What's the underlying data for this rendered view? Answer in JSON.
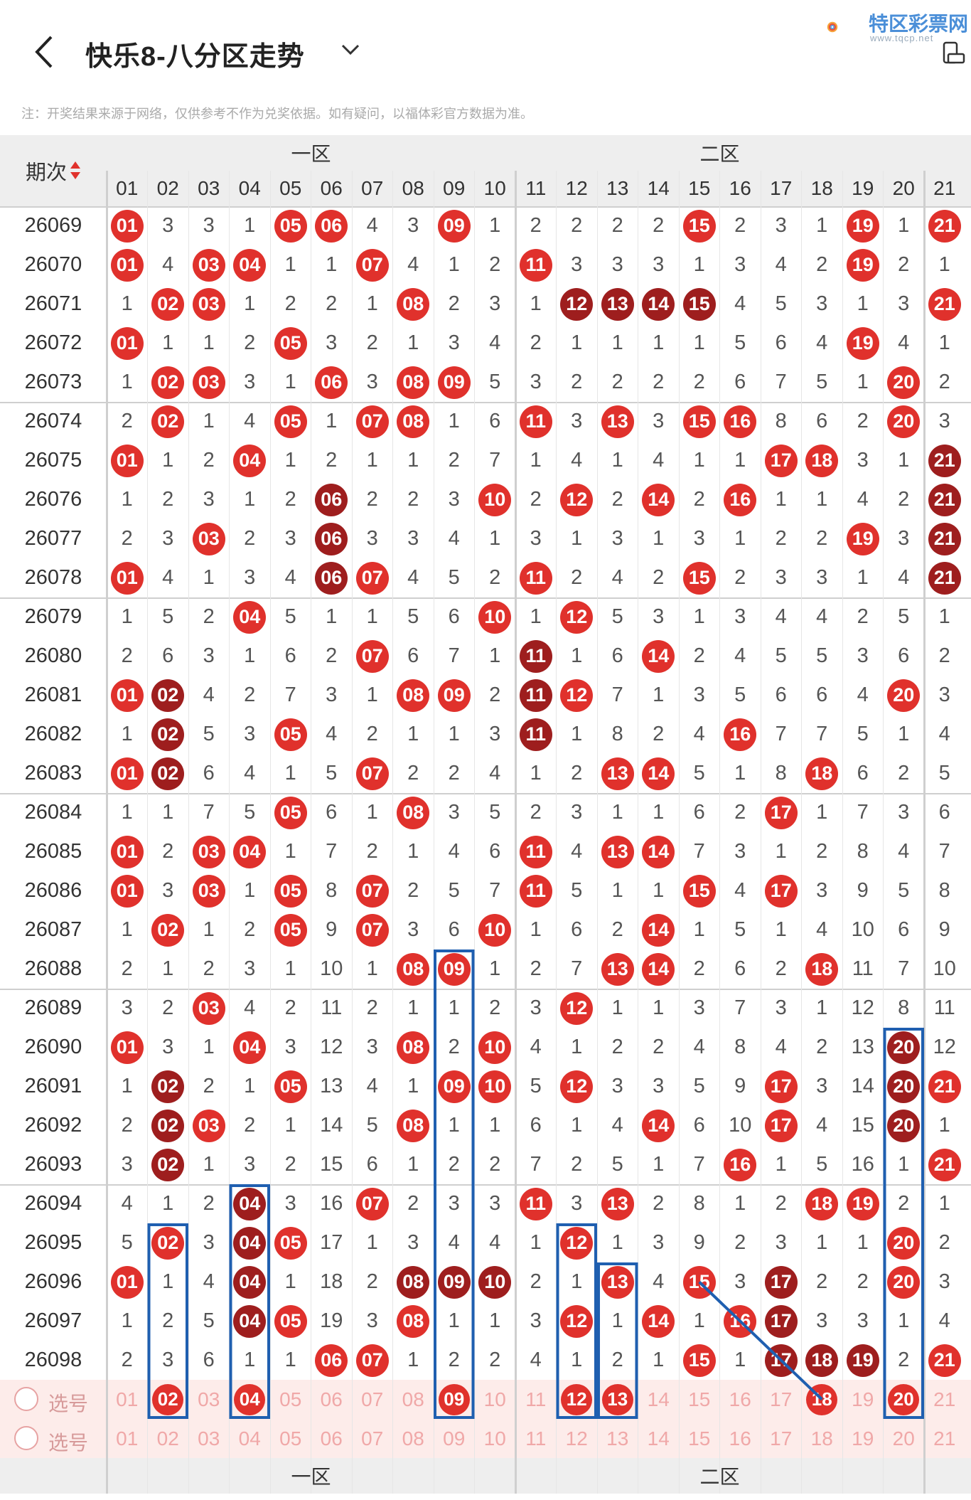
{
  "header": {
    "title": "快乐8-八分区走势",
    "logo_text": "特区彩票网",
    "logo_sub": "www.tqcp.net",
    "note": "注：开奖结果来源于网络，仅供参考不作为兑奖依据。如有疑问，以福体彩官方数据为准。"
  },
  "table": {
    "period_header": "期次",
    "zone1_label": "一区",
    "zone2_label": "二区",
    "columns": [
      "01",
      "02",
      "03",
      "04",
      "05",
      "06",
      "07",
      "08",
      "09",
      "10",
      "11",
      "12",
      "13",
      "14",
      "15",
      "16",
      "17",
      "18",
      "19",
      "20",
      "21"
    ],
    "rows": [
      {
        "period": "26069",
        "cells": [
          "B01",
          "3",
          "3",
          "1",
          "B05",
          "B06",
          "4",
          "3",
          "B09",
          "1",
          "2",
          "2",
          "2",
          "2",
          "B15",
          "2",
          "3",
          "1",
          "B19",
          "1",
          "B21"
        ]
      },
      {
        "period": "26070",
        "cells": [
          "B01",
          "4",
          "B03",
          "B04",
          "1",
          "1",
          "B07",
          "4",
          "1",
          "2",
          "B11",
          "3",
          "3",
          "3",
          "1",
          "3",
          "4",
          "2",
          "B19",
          "2",
          "1"
        ]
      },
      {
        "period": "26071",
        "cells": [
          "1",
          "B02",
          "B03",
          "1",
          "2",
          "2",
          "1",
          "B08",
          "2",
          "3",
          "1",
          "D12",
          "D13",
          "D14",
          "D15",
          "4",
          "5",
          "3",
          "1",
          "3",
          "B21"
        ]
      },
      {
        "period": "26072",
        "cells": [
          "B01",
          "1",
          "1",
          "2",
          "B05",
          "3",
          "2",
          "1",
          "3",
          "4",
          "2",
          "1",
          "1",
          "1",
          "1",
          "5",
          "6",
          "4",
          "B19",
          "4",
          "1"
        ]
      },
      {
        "period": "26073",
        "cells": [
          "1",
          "B02",
          "B03",
          "3",
          "1",
          "B06",
          "3",
          "B08",
          "B09",
          "5",
          "3",
          "2",
          "2",
          "2",
          "2",
          "6",
          "7",
          "5",
          "1",
          "B20",
          "2"
        ]
      },
      {
        "period": "26074",
        "cells": [
          "2",
          "B02",
          "1",
          "4",
          "B05",
          "1",
          "B07",
          "B08",
          "1",
          "6",
          "B11",
          "3",
          "B13",
          "3",
          "B15",
          "B16",
          "8",
          "6",
          "2",
          "B20",
          "3"
        ]
      },
      {
        "period": "26075",
        "cells": [
          "B01",
          "1",
          "2",
          "B04",
          "1",
          "2",
          "1",
          "1",
          "2",
          "7",
          "1",
          "4",
          "1",
          "4",
          "1",
          "1",
          "B17",
          "B18",
          "3",
          "1",
          "D21"
        ]
      },
      {
        "period": "26076",
        "cells": [
          "1",
          "2",
          "3",
          "1",
          "2",
          "D06",
          "2",
          "2",
          "3",
          "B10",
          "2",
          "B12",
          "2",
          "B14",
          "2",
          "B16",
          "1",
          "1",
          "4",
          "2",
          "D21"
        ]
      },
      {
        "period": "26077",
        "cells": [
          "2",
          "3",
          "B03",
          "2",
          "3",
          "D06",
          "3",
          "3",
          "4",
          "1",
          "3",
          "1",
          "3",
          "1",
          "3",
          "1",
          "2",
          "2",
          "B19",
          "3",
          "D21"
        ]
      },
      {
        "period": "26078",
        "cells": [
          "B01",
          "4",
          "1",
          "3",
          "4",
          "D06",
          "B07",
          "4",
          "5",
          "2",
          "B11",
          "2",
          "4",
          "2",
          "B15",
          "2",
          "3",
          "3",
          "1",
          "4",
          "D21"
        ]
      },
      {
        "period": "26079",
        "cells": [
          "1",
          "5",
          "2",
          "B04",
          "5",
          "1",
          "1",
          "5",
          "6",
          "B10",
          "1",
          "B12",
          "5",
          "3",
          "1",
          "3",
          "4",
          "4",
          "2",
          "5",
          "1"
        ]
      },
      {
        "period": "26080",
        "cells": [
          "2",
          "6",
          "3",
          "1",
          "6",
          "2",
          "B07",
          "6",
          "7",
          "1",
          "D11",
          "1",
          "6",
          "B14",
          "2",
          "4",
          "5",
          "5",
          "3",
          "6",
          "2"
        ]
      },
      {
        "period": "26081",
        "cells": [
          "B01",
          "D02",
          "4",
          "2",
          "7",
          "3",
          "1",
          "B08",
          "B09",
          "2",
          "D11",
          "B12",
          "7",
          "1",
          "3",
          "5",
          "6",
          "6",
          "4",
          "B20",
          "3"
        ]
      },
      {
        "period": "26082",
        "cells": [
          "1",
          "D02",
          "5",
          "3",
          "B05",
          "4",
          "2",
          "1",
          "1",
          "3",
          "D11",
          "1",
          "8",
          "2",
          "4",
          "B16",
          "7",
          "7",
          "5",
          "1",
          "4"
        ]
      },
      {
        "period": "26083",
        "cells": [
          "B01",
          "D02",
          "6",
          "4",
          "1",
          "5",
          "B07",
          "2",
          "2",
          "4",
          "1",
          "2",
          "B13",
          "B14",
          "5",
          "1",
          "8",
          "B18",
          "6",
          "2",
          "5"
        ]
      },
      {
        "period": "26084",
        "cells": [
          "1",
          "1",
          "7",
          "5",
          "B05",
          "6",
          "1",
          "B08",
          "3",
          "5",
          "2",
          "3",
          "1",
          "1",
          "6",
          "2",
          "B17",
          "1",
          "7",
          "3",
          "6"
        ]
      },
      {
        "period": "26085",
        "cells": [
          "B01",
          "2",
          "B03",
          "B04",
          "1",
          "7",
          "2",
          "1",
          "4",
          "6",
          "B11",
          "4",
          "B13",
          "B14",
          "7",
          "3",
          "1",
          "2",
          "8",
          "4",
          "7"
        ]
      },
      {
        "period": "26086",
        "cells": [
          "B01",
          "3",
          "B03",
          "1",
          "B05",
          "8",
          "B07",
          "2",
          "5",
          "7",
          "B11",
          "5",
          "1",
          "1",
          "B15",
          "4",
          "B17",
          "3",
          "9",
          "5",
          "8"
        ]
      },
      {
        "period": "26087",
        "cells": [
          "1",
          "B02",
          "1",
          "2",
          "B05",
          "9",
          "B07",
          "3",
          "6",
          "B10",
          "1",
          "6",
          "2",
          "B14",
          "1",
          "5",
          "1",
          "4",
          "10",
          "6",
          "9"
        ]
      },
      {
        "period": "26088",
        "cells": [
          "2",
          "1",
          "2",
          "3",
          "1",
          "10",
          "1",
          "B08",
          "B09",
          "1",
          "2",
          "7",
          "B13",
          "B14",
          "2",
          "6",
          "2",
          "B18",
          "11",
          "7",
          "10"
        ]
      },
      {
        "period": "26089",
        "cells": [
          "3",
          "2",
          "B03",
          "4",
          "2",
          "11",
          "2",
          "1",
          "1",
          "2",
          "3",
          "B12",
          "1",
          "1",
          "3",
          "7",
          "3",
          "1",
          "12",
          "8",
          "11"
        ]
      },
      {
        "period": "26090",
        "cells": [
          "B01",
          "3",
          "1",
          "B04",
          "3",
          "12",
          "3",
          "B08",
          "2",
          "B10",
          "4",
          "1",
          "2",
          "2",
          "4",
          "8",
          "4",
          "2",
          "13",
          "D20",
          "12"
        ]
      },
      {
        "period": "26091",
        "cells": [
          "1",
          "D02",
          "2",
          "1",
          "B05",
          "13",
          "4",
          "1",
          "B09",
          "B10",
          "5",
          "B12",
          "3",
          "3",
          "5",
          "9",
          "B17",
          "3",
          "14",
          "D20",
          "B21"
        ]
      },
      {
        "period": "26092",
        "cells": [
          "2",
          "D02",
          "B03",
          "2",
          "1",
          "14",
          "5",
          "B08",
          "1",
          "1",
          "6",
          "1",
          "4",
          "B14",
          "6",
          "10",
          "B17",
          "4",
          "15",
          "D20",
          "1"
        ]
      },
      {
        "period": "26093",
        "cells": [
          "3",
          "D02",
          "1",
          "3",
          "2",
          "15",
          "6",
          "1",
          "2",
          "2",
          "7",
          "2",
          "5",
          "1",
          "7",
          "B16",
          "1",
          "5",
          "16",
          "1",
          "B21"
        ]
      },
      {
        "period": "26094",
        "cells": [
          "4",
          "1",
          "2",
          "D04",
          "3",
          "16",
          "B07",
          "2",
          "3",
          "3",
          "B11",
          "3",
          "B13",
          "2",
          "8",
          "1",
          "2",
          "B18",
          "B19",
          "2",
          "1"
        ]
      },
      {
        "period": "26095",
        "cells": [
          "5",
          "B02",
          "3",
          "D04",
          "B05",
          "17",
          "1",
          "3",
          "4",
          "4",
          "1",
          "B12",
          "1",
          "3",
          "9",
          "2",
          "3",
          "1",
          "1",
          "B20",
          "2"
        ]
      },
      {
        "period": "26096",
        "cells": [
          "B01",
          "1",
          "4",
          "D04",
          "1",
          "18",
          "2",
          "D08",
          "D09",
          "D10",
          "2",
          "1",
          "B13",
          "4",
          "B15",
          "3",
          "D17",
          "2",
          "2",
          "B20",
          "3"
        ]
      },
      {
        "period": "26097",
        "cells": [
          "1",
          "2",
          "5",
          "D04",
          "B05",
          "19",
          "3",
          "B08",
          "1",
          "1",
          "3",
          "B12",
          "1",
          "B14",
          "1",
          "B16",
          "D17",
          "3",
          "3",
          "1",
          "4"
        ]
      },
      {
        "period": "26098",
        "cells": [
          "2",
          "3",
          "6",
          "1",
          "1",
          "B06",
          "B07",
          "1",
          "2",
          "2",
          "4",
          "1",
          "2",
          "1",
          "B15",
          "1",
          "D17",
          "D18",
          "D19",
          "2",
          "B21"
        ]
      }
    ],
    "select_label": "选号",
    "select_rows": [
      {
        "cells": [
          "01",
          "B02",
          "03",
          "B04",
          "05",
          "06",
          "07",
          "08",
          "B09",
          "10",
          "11",
          "B12",
          "B13",
          "14",
          "15",
          "16",
          "17",
          "B18",
          "19",
          "B20",
          "21"
        ]
      },
      {
        "cells": [
          "01",
          "02",
          "03",
          "04",
          "05",
          "06",
          "07",
          "08",
          "09",
          "10",
          "11",
          "12",
          "13",
          "14",
          "15",
          "16",
          "17",
          "18",
          "19",
          "20",
          "21"
        ]
      }
    ]
  }
}
